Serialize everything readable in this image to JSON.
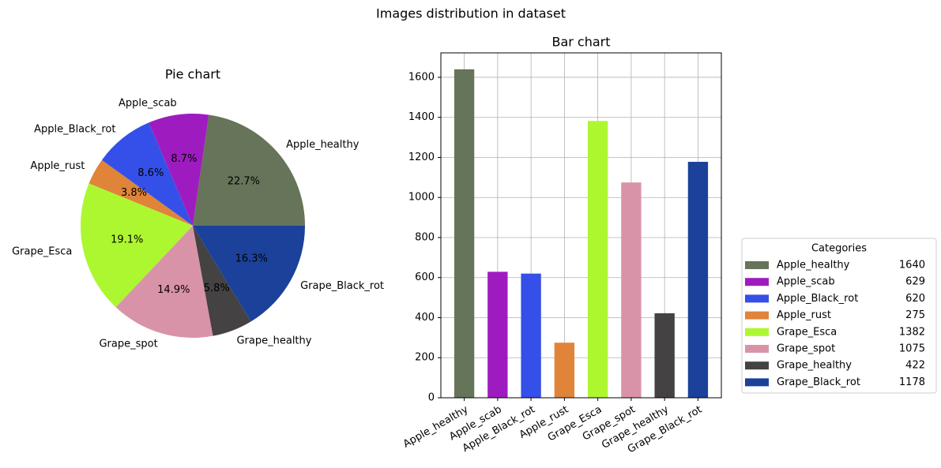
{
  "title": "Images distribution in dataset",
  "chart_data": [
    {
      "type": "pie",
      "title": "Pie chart",
      "categories": [
        "Apple_healthy",
        "Apple_scab",
        "Apple_Black_rot",
        "Apple_rust",
        "Grape_Esca",
        "Grape_spot",
        "Grape_healthy",
        "Grape_Black_rot"
      ],
      "values": [
        22.7,
        8.7,
        8.6,
        3.8,
        19.1,
        14.9,
        5.8,
        16.3
      ],
      "value_labels": [
        "22.7%",
        "8.7%",
        "8.6%",
        "3.8%",
        "19.1%",
        "14.9%",
        "5.8%",
        "16.3%"
      ],
      "colors": [
        "#667459",
        "#9e1cbf",
        "#3550e8",
        "#e0843a",
        "#adf731",
        "#d993a8",
        "#444242",
        "#1b419a"
      ]
    },
    {
      "type": "bar",
      "title": "Bar chart",
      "categories": [
        "Apple_healthy",
        "Apple_scab",
        "Apple_Black_rot",
        "Apple_rust",
        "Grape_Esca",
        "Grape_spot",
        "Grape_healthy",
        "Grape_Black_rot"
      ],
      "values": [
        1640,
        629,
        620,
        275,
        1382,
        1075,
        422,
        1178
      ],
      "colors": [
        "#667459",
        "#9e1cbf",
        "#3550e8",
        "#e0843a",
        "#adf731",
        "#d993a8",
        "#444242",
        "#1b419a"
      ],
      "ylim": [
        0,
        1722
      ],
      "yticks": [
        0,
        200,
        400,
        600,
        800,
        1000,
        1200,
        1400,
        1600
      ],
      "grid": true,
      "legend_title": "Categories",
      "legend": "outside right"
    }
  ]
}
